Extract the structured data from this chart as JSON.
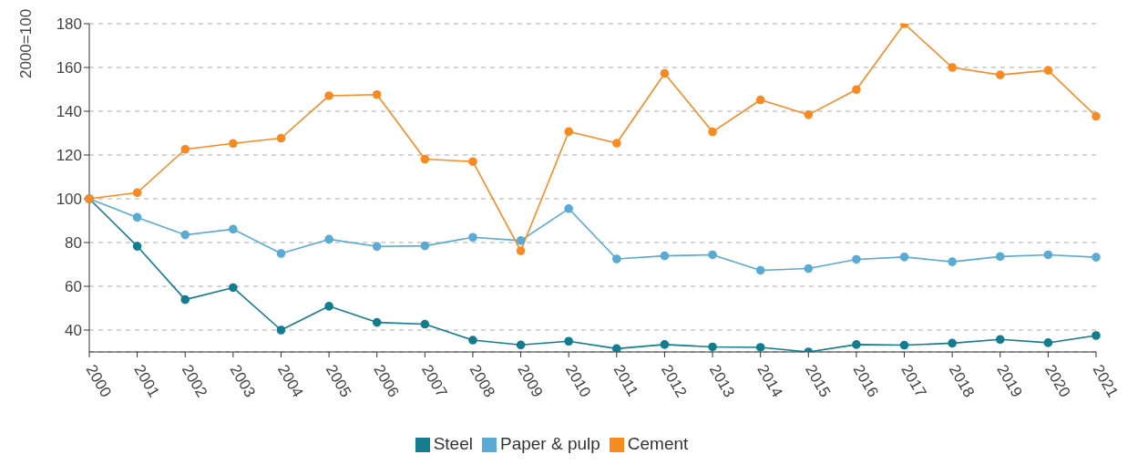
{
  "chart_data": {
    "type": "line",
    "ylabel": "2000=100",
    "categories": [
      "2000",
      "2001",
      "2002",
      "2003",
      "2004",
      "2005",
      "2006",
      "2007",
      "2008",
      "2009",
      "2010",
      "2011",
      "2012",
      "2013",
      "2014",
      "2015",
      "2016",
      "2017",
      "2018",
      "2019",
      "2020",
      "2021"
    ],
    "series": [
      {
        "name": "Steel",
        "color": "#137c8f",
        "values": [
          100,
          78.3,
          53.9,
          59.4,
          40,
          50.9,
          43.5,
          42.7,
          35.4,
          33.2,
          34.9,
          31.5,
          33.4,
          32.3,
          32.1,
          30,
          33.4,
          33.1,
          34,
          35.7,
          34.2,
          37.5
        ]
      },
      {
        "name": "Paper & pulp",
        "color": "#5aaad4",
        "values": [
          100,
          91.5,
          83.5,
          86.1,
          75,
          81.5,
          78.2,
          78.5,
          82.4,
          80.9,
          95.5,
          72.5,
          73.9,
          74.4,
          67.3,
          68.1,
          72.3,
          73.4,
          71.2,
          73.6,
          74.4,
          73.3
        ]
      },
      {
        "name": "Cement",
        "color": "#f98a22",
        "values": [
          100,
          102.8,
          122.6,
          125.3,
          127.7,
          147.1,
          147.6,
          118.1,
          117,
          76.2,
          130.7,
          125.4,
          157.3,
          130.6,
          145.2,
          138.4,
          149.9,
          180,
          160,
          156.6,
          158.7,
          137.7
        ]
      }
    ],
    "ylim": [
      30,
      180
    ],
    "yticks": [
      40,
      60,
      80,
      100,
      120,
      140,
      160,
      180
    ],
    "grid": "y",
    "legend": "bottom",
    "marker": "circle",
    "line_style": "solid"
  }
}
